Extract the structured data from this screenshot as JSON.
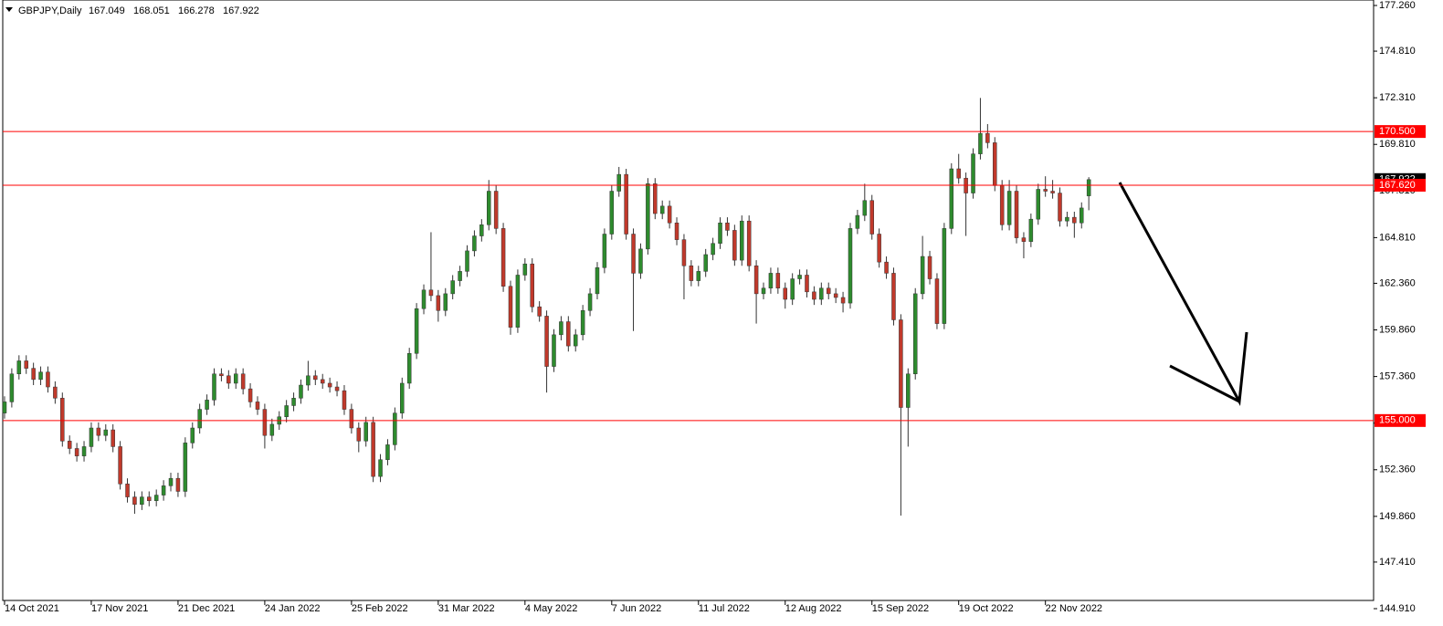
{
  "chart_data": {
    "type": "candlestick",
    "symbol": "GBPJPY,Daily",
    "open": [
      155.4,
      156.0,
      157.5,
      158.2,
      157.8,
      157.2,
      157.6,
      156.8,
      156.2,
      153.9,
      153.5,
      153.1,
      153.6,
      154.6,
      154.2,
      154.5,
      153.6,
      151.6,
      150.9,
      150.5,
      150.9,
      150.7,
      151.0,
      151.5,
      151.9,
      151.2,
      153.8,
      154.6,
      155.6,
      156.1,
      157.5,
      157.4,
      157.0,
      157.5,
      156.7,
      156.0,
      155.6,
      154.2,
      154.8,
      155.2,
      155.8,
      156.2,
      156.9,
      157.4,
      157.2,
      157.0,
      156.8,
      156.6,
      155.6,
      154.6,
      153.9,
      154.9,
      152.0,
      152.9,
      153.7,
      155.4,
      157.0,
      158.6,
      161.0,
      162.0,
      161.7,
      160.9,
      161.8,
      162.5,
      163.0,
      164.1,
      164.9,
      165.5,
      167.3,
      165.3,
      162.2,
      160.0,
      162.8,
      163.4,
      161.1,
      160.6,
      157.9,
      159.6,
      160.3,
      159.0,
      159.6,
      160.9,
      161.8,
      163.2,
      165.0,
      167.3,
      168.2,
      165.0,
      162.9,
      164.2,
      167.7,
      166.1,
      166.5,
      165.6,
      164.7,
      163.3,
      162.5,
      163.0,
      163.9,
      164.5,
      165.6,
      165.2,
      163.6,
      165.7,
      163.3,
      161.8,
      162.1,
      162.9,
      162.1,
      161.5,
      162.6,
      162.8,
      161.9,
      161.5,
      162.1,
      161.8,
      161.6,
      161.3,
      165.3,
      166.0,
      166.8,
      165.0,
      163.5,
      162.9,
      160.4,
      155.7,
      157.5,
      161.8,
      163.8,
      162.6,
      160.2,
      165.3,
      168.5,
      168.0,
      167.2,
      169.3,
      170.4,
      169.9,
      167.6,
      165.5,
      167.3,
      164.8,
      164.6,
      165.8,
      167.4,
      167.3,
      167.2,
      165.7,
      165.9,
      165.6,
      167.049
    ],
    "high": [
      156.3,
      157.8,
      158.5,
      158.5,
      158.1,
      157.9,
      157.9,
      157.1,
      156.5,
      154.2,
      153.8,
      153.9,
      154.9,
      154.9,
      154.8,
      154.8,
      153.9,
      151.9,
      151.2,
      151.2,
      151.2,
      151.3,
      151.8,
      152.2,
      152.2,
      154.1,
      154.9,
      155.9,
      156.4,
      157.8,
      157.8,
      157.7,
      157.8,
      157.8,
      157.0,
      156.3,
      155.9,
      155.1,
      155.5,
      156.1,
      156.5,
      157.2,
      158.2,
      157.7,
      157.5,
      157.3,
      157.1,
      156.9,
      155.9,
      154.9,
      155.2,
      155.2,
      153.2,
      154.0,
      155.7,
      157.3,
      158.9,
      161.3,
      162.3,
      165.1,
      162.0,
      162.1,
      162.8,
      163.3,
      164.4,
      165.2,
      165.8,
      167.9,
      167.6,
      165.6,
      162.5,
      163.1,
      163.7,
      163.7,
      161.4,
      160.9,
      159.9,
      160.6,
      160.6,
      159.9,
      161.2,
      162.1,
      163.5,
      165.3,
      167.6,
      168.6,
      168.5,
      165.3,
      164.5,
      168.0,
      168.0,
      166.8,
      166.8,
      165.9,
      165.0,
      163.6,
      163.3,
      164.2,
      164.8,
      165.9,
      165.9,
      165.5,
      166.0,
      166.0,
      163.6,
      162.4,
      163.2,
      163.2,
      162.4,
      162.9,
      163.1,
      163.1,
      162.2,
      162.4,
      162.4,
      162.1,
      161.9,
      165.6,
      166.3,
      167.7,
      167.1,
      165.3,
      163.8,
      163.2,
      160.7,
      157.8,
      162.1,
      164.9,
      164.1,
      162.9,
      165.6,
      168.8,
      169.3,
      168.3,
      169.6,
      172.3,
      170.9,
      170.2,
      167.9,
      167.9,
      167.6,
      165.1,
      166.1,
      167.7,
      168.1,
      167.9,
      167.5,
      166.2,
      166.2,
      166.7,
      168.051
    ],
    "low": [
      155.1,
      155.7,
      157.2,
      157.5,
      156.9,
      156.9,
      156.5,
      155.9,
      153.6,
      153.2,
      152.8,
      152.8,
      153.3,
      153.9,
      153.9,
      153.3,
      151.3,
      150.6,
      150.0,
      150.2,
      150.4,
      150.4,
      150.7,
      151.2,
      150.9,
      150.9,
      153.5,
      154.3,
      155.3,
      155.8,
      157.1,
      156.7,
      156.7,
      156.4,
      155.7,
      155.3,
      153.5,
      153.9,
      154.5,
      154.9,
      155.5,
      155.9,
      156.6,
      156.9,
      156.7,
      156.5,
      156.3,
      155.3,
      154.3,
      153.3,
      153.6,
      151.7,
      151.7,
      152.6,
      153.4,
      155.1,
      156.7,
      158.3,
      160.7,
      161.4,
      160.3,
      160.6,
      161.5,
      162.2,
      162.7,
      163.8,
      164.6,
      165.2,
      165.0,
      161.9,
      159.6,
      159.7,
      162.5,
      160.8,
      160.3,
      156.5,
      157.6,
      159.3,
      158.7,
      158.7,
      159.3,
      160.6,
      161.5,
      162.9,
      164.7,
      167.0,
      164.7,
      159.8,
      162.6,
      163.9,
      165.8,
      165.8,
      165.3,
      164.4,
      161.5,
      162.2,
      162.2,
      162.7,
      163.6,
      164.2,
      164.9,
      163.3,
      163.3,
      163.0,
      160.2,
      161.5,
      161.8,
      161.8,
      161.0,
      161.2,
      162.3,
      161.6,
      161.2,
      161.2,
      161.5,
      161.3,
      160.8,
      161.0,
      165.0,
      165.7,
      164.7,
      163.2,
      162.6,
      160.1,
      149.9,
      153.6,
      157.2,
      161.5,
      162.3,
      159.9,
      159.9,
      165.0,
      167.7,
      164.9,
      166.9,
      169.0,
      169.6,
      167.3,
      165.2,
      165.2,
      164.5,
      163.7,
      164.3,
      165.5,
      167.0,
      166.9,
      165.4,
      165.4,
      164.8,
      165.3,
      166.278
    ],
    "close": [
      156.0,
      157.5,
      158.2,
      157.8,
      157.2,
      157.6,
      156.8,
      156.2,
      153.9,
      153.5,
      153.1,
      153.6,
      154.6,
      154.2,
      154.5,
      153.6,
      151.6,
      150.9,
      150.5,
      150.9,
      150.7,
      151.0,
      151.5,
      151.9,
      151.2,
      153.8,
      154.6,
      155.6,
      156.1,
      157.5,
      157.4,
      157.0,
      157.5,
      156.7,
      156.0,
      155.6,
      154.2,
      154.8,
      155.2,
      155.8,
      156.2,
      156.9,
      157.4,
      157.2,
      157.0,
      156.8,
      156.6,
      155.6,
      154.6,
      153.9,
      154.9,
      152.0,
      152.9,
      153.7,
      155.4,
      157.0,
      158.6,
      161.0,
      162.0,
      161.7,
      160.9,
      161.8,
      162.5,
      163.0,
      164.1,
      164.9,
      165.5,
      167.3,
      165.3,
      162.2,
      160.0,
      162.8,
      163.4,
      161.1,
      160.6,
      157.9,
      159.6,
      160.3,
      159.0,
      159.6,
      160.9,
      161.8,
      163.2,
      165.0,
      167.3,
      168.2,
      165.0,
      162.9,
      164.2,
      167.7,
      166.1,
      166.5,
      165.6,
      164.7,
      163.3,
      162.5,
      163.0,
      163.9,
      164.5,
      165.6,
      165.2,
      163.6,
      165.7,
      163.3,
      161.8,
      162.1,
      162.9,
      162.1,
      161.5,
      162.6,
      162.8,
      161.9,
      161.5,
      162.1,
      161.8,
      161.6,
      161.3,
      165.3,
      166.0,
      166.8,
      165.0,
      163.5,
      162.9,
      160.4,
      155.7,
      157.5,
      161.8,
      163.8,
      162.6,
      160.2,
      165.3,
      168.5,
      168.0,
      167.2,
      169.3,
      170.4,
      169.9,
      167.6,
      165.5,
      167.3,
      164.8,
      164.6,
      165.8,
      167.4,
      167.3,
      167.2,
      165.7,
      165.9,
      165.6,
      166.4,
      167.922
    ],
    "up_color": "#2e8b2e",
    "down_color": "#c0392b",
    "wick_color": "#333333",
    "ylim": [
      144.91,
      177.26
    ],
    "yticks": [
      {
        "value": 177.26,
        "label": "177.260"
      },
      {
        "value": 174.81,
        "label": "174.810"
      },
      {
        "value": 172.31,
        "label": "172.310"
      },
      {
        "value": 169.81,
        "label": "169.810"
      },
      {
        "value": 167.31,
        "label": "167.310"
      },
      {
        "value": 164.81,
        "label": "164.810"
      },
      {
        "value": 162.36,
        "label": "162.360"
      },
      {
        "value": 159.86,
        "label": "159.860"
      },
      {
        "value": 157.36,
        "label": "157.360"
      },
      {
        "value": 154.86,
        "label": "154.860"
      },
      {
        "value": 152.36,
        "label": "152.360"
      },
      {
        "value": 149.86,
        "label": "149.860"
      },
      {
        "value": 147.41,
        "label": "147.410"
      },
      {
        "value": 144.91,
        "label": "144.910"
      }
    ],
    "xlim": [
      -0.25,
      189.4
    ],
    "xticks": [
      {
        "value": 0,
        "label": "14 Oct 2021"
      },
      {
        "value": 12,
        "label": "17 Nov 2021"
      },
      {
        "value": 24,
        "label": "21 Dec 2021"
      },
      {
        "value": 36,
        "label": "24 Jan 2022"
      },
      {
        "value": 48,
        "label": "25 Feb 2022"
      },
      {
        "value": 60,
        "label": "31 Mar 2022"
      },
      {
        "value": 72,
        "label": "4 May 2022"
      },
      {
        "value": 84,
        "label": "7 Jun 2022"
      },
      {
        "value": 96,
        "label": "11 Jul 2022"
      },
      {
        "value": 108,
        "label": "12 Aug 2022"
      },
      {
        "value": 120,
        "label": "15 Sep 2022"
      },
      {
        "value": 132,
        "label": "19 Oct 2022"
      },
      {
        "value": 144,
        "label": "22 Nov 2022"
      }
    ],
    "last_price": {
      "value": 167.922,
      "label": "167.922"
    },
    "levels": [
      {
        "value": 170.5,
        "label": "170.500"
      },
      {
        "value": 167.62,
        "label": "167.620"
      },
      {
        "value": 155.0,
        "label": "155.000"
      }
    ],
    "level_color": "#ff0000"
  }
}
